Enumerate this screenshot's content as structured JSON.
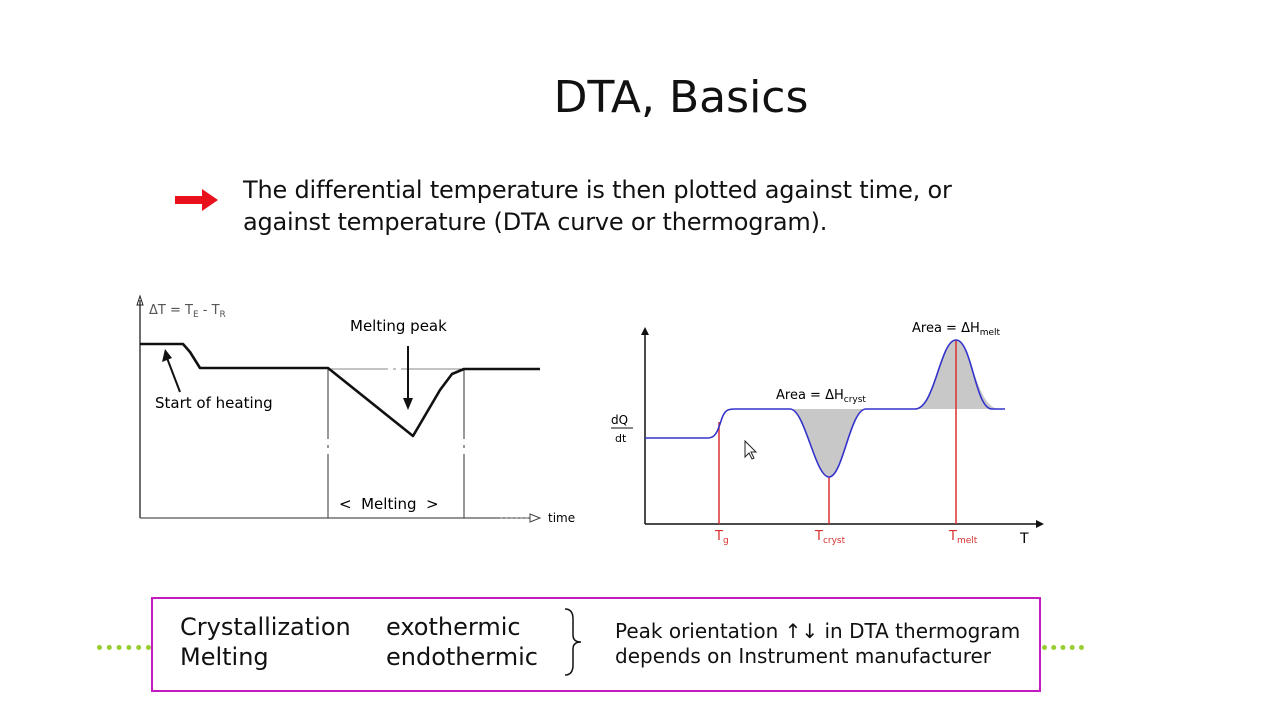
{
  "slide": {
    "title": "DTA, Basics",
    "bullet_icon": "red-arrow-icon",
    "bullet_lines": [
      "The differential temperature is then plotted against time, or",
      "against temperature (DTA curve or thermogram)."
    ]
  },
  "left_diagram": {
    "y_label": "ΔT = T",
    "y_label_sub1": "E",
    "y_label_mid": " - T",
    "y_label_sub2": "R",
    "x_label": "time",
    "annotation_peak": "Melting peak",
    "annotation_start": "Start of heating",
    "range_label": "<  Melting  >"
  },
  "right_diagram": {
    "y_label_num": "dQ",
    "y_label_den": "dt",
    "x_label": "T",
    "area_cryst": "Area = ΔH",
    "area_cryst_sub": "cryst",
    "area_melt": "Area = ΔH",
    "area_melt_sub": "melt",
    "tg": "T",
    "tg_sub": "g",
    "tcryst": "T",
    "tcryst_sub": "cryst",
    "tmelt": "T",
    "tmelt_sub": "melt",
    "curve_color": "#3333cc",
    "marker_color": "#d83030",
    "fill_color": "#c8c8c8"
  },
  "summary_box": {
    "rows": [
      {
        "process": "Crystallization",
        "type": "exothermic"
      },
      {
        "process": "Melting",
        "type": "endothermic"
      }
    ],
    "note_lines": [
      "Peak orientation ↑↓ in DTA thermogram",
      "depends on Instrument manufacturer"
    ],
    "border_color": "#c21bc2"
  },
  "colors": {
    "accent_arrow": "#e8101a",
    "dotted_line": "#9acd32"
  }
}
